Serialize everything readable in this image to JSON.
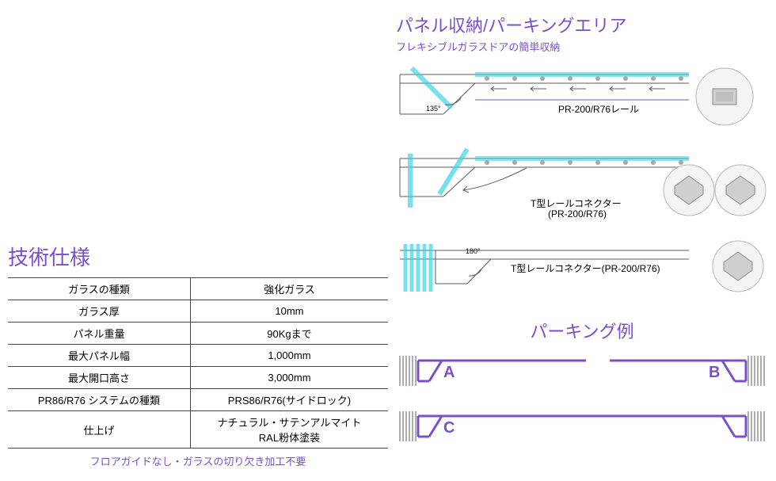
{
  "colors": {
    "purple": "#7b4fc9",
    "cyan": "#3dd4e6",
    "gray_line": "#5c5c5c",
    "circle_fill": "#e8e8e8",
    "circle_stroke": "#b5b5b5"
  },
  "left": {
    "heading": "技術仕様",
    "rows": [
      {
        "label": "ガラスの種類",
        "value": "強化ガラス"
      },
      {
        "label": "ガラス厚",
        "value": "10mm"
      },
      {
        "label": "パネル重量",
        "value": "90Kgまで"
      },
      {
        "label": "最大パネル幅",
        "value": "1,000mm"
      },
      {
        "label": "最大開口高さ",
        "value": "3,000mm"
      },
      {
        "label": "PR86/R76 システムの種類",
        "value": "PRS86/R76(サイドロック)"
      },
      {
        "label": "仕上げ",
        "value": "ナチュラル・サテンアルマイト\nRAL粉体塗装"
      }
    ],
    "footnote": "フロアガイドなし・ガラスの切り欠き加工不要"
  },
  "right": {
    "heading": "パネル収納/パーキングエリア",
    "subheading": "フレキシブルガラスドアの簡単収納",
    "diagrams": [
      {
        "angle_label": "135°",
        "callout": "PR-200/R76レール",
        "callout_sub": ""
      },
      {
        "angle_label": "",
        "callout": "T型レールコネクター",
        "callout_sub": "(PR-200/R76)"
      },
      {
        "angle_label": "180°",
        "callout": "T型レールコネクター(PR-200/R76)",
        "callout_sub": ""
      }
    ],
    "parking": {
      "heading": "パーキング例",
      "labels": [
        "A",
        "B",
        "C"
      ]
    }
  }
}
